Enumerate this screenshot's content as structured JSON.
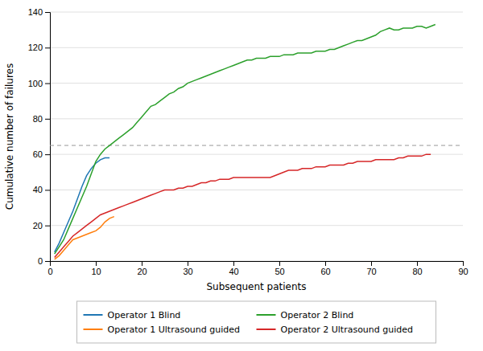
{
  "chart_data": {
    "type": "line",
    "xlabel": "Subsequent patients",
    "ylabel": "Cumulative number of failures",
    "xlim": [
      0,
      90
    ],
    "ylim": [
      0,
      140
    ],
    "xticks": [
      0,
      10,
      20,
      30,
      40,
      50,
      60,
      70,
      80,
      90
    ],
    "yticks": [
      0,
      20,
      40,
      60,
      80,
      100,
      120,
      140
    ],
    "grid": true,
    "legend": "bottom",
    "reference_line": 65,
    "series": [
      {
        "name": "Operator 1 Blind",
        "x": [
          1,
          2,
          3,
          4,
          5,
          6,
          7,
          8,
          9,
          10,
          11,
          12,
          13
        ],
        "values": [
          5,
          10,
          16,
          22,
          28,
          35,
          42,
          48,
          52,
          55,
          57,
          58,
          58
        ]
      },
      {
        "name": "Operator 1 Ultrasound guided",
        "x": [
          1,
          2,
          3,
          4,
          5,
          6,
          7,
          8,
          9,
          10,
          11,
          12,
          13,
          14
        ],
        "values": [
          1,
          3,
          6,
          9,
          12,
          13,
          14,
          15,
          16,
          17,
          19,
          22,
          24,
          25
        ]
      },
      {
        "name": "Operator 2 Blind",
        "x": [
          1,
          2,
          3,
          4,
          5,
          6,
          7,
          8,
          9,
          10,
          11,
          12,
          13,
          14,
          15,
          16,
          17,
          18,
          19,
          20,
          21,
          22,
          23,
          24,
          25,
          26,
          27,
          28,
          29,
          30,
          31,
          32,
          33,
          34,
          35,
          36,
          37,
          38,
          39,
          40,
          41,
          42,
          43,
          44,
          45,
          46,
          47,
          48,
          49,
          50,
          51,
          52,
          53,
          54,
          55,
          56,
          57,
          58,
          59,
          60,
          61,
          62,
          63,
          64,
          65,
          66,
          67,
          68,
          69,
          70,
          71,
          72,
          73,
          74,
          75,
          76,
          77,
          78,
          79,
          80,
          81,
          82,
          83,
          84
        ],
        "values": [
          4,
          8,
          12,
          18,
          24,
          30,
          36,
          42,
          49,
          56,
          60,
          63,
          65,
          67,
          69,
          71,
          73,
          75,
          78,
          81,
          84,
          87,
          88,
          90,
          92,
          94,
          95,
          97,
          98,
          100,
          101,
          102,
          103,
          104,
          105,
          106,
          107,
          108,
          109,
          110,
          111,
          112,
          113,
          113,
          114,
          114,
          114,
          115,
          115,
          115,
          116,
          116,
          116,
          117,
          117,
          117,
          117,
          118,
          118,
          118,
          119,
          119,
          120,
          121,
          122,
          123,
          124,
          124,
          125,
          126,
          127,
          129,
          130,
          131,
          130,
          130,
          131,
          131,
          131,
          132,
          132,
          131,
          132,
          133
        ]
      },
      {
        "name": "Operator 2 Ultrasound guided",
        "x": [
          1,
          2,
          3,
          4,
          5,
          6,
          7,
          8,
          9,
          10,
          11,
          12,
          13,
          14,
          15,
          16,
          17,
          18,
          19,
          20,
          21,
          22,
          23,
          24,
          25,
          26,
          27,
          28,
          29,
          30,
          31,
          32,
          33,
          34,
          35,
          36,
          37,
          38,
          39,
          40,
          41,
          42,
          43,
          44,
          45,
          46,
          47,
          48,
          49,
          50,
          51,
          52,
          53,
          54,
          55,
          56,
          57,
          58,
          59,
          60,
          61,
          62,
          63,
          64,
          65,
          66,
          67,
          68,
          69,
          70,
          71,
          72,
          73,
          74,
          75,
          76,
          77,
          78,
          79,
          80,
          81,
          82,
          83
        ],
        "values": [
          2,
          5,
          8,
          11,
          14,
          16,
          18,
          20,
          22,
          24,
          26,
          27,
          28,
          29,
          30,
          31,
          32,
          33,
          34,
          35,
          36,
          37,
          38,
          39,
          40,
          40,
          40,
          41,
          41,
          42,
          42,
          43,
          44,
          44,
          45,
          45,
          46,
          46,
          46,
          47,
          47,
          47,
          47,
          47,
          47,
          47,
          47,
          47,
          48,
          49,
          50,
          51,
          51,
          51,
          52,
          52,
          52,
          53,
          53,
          53,
          54,
          54,
          54,
          54,
          55,
          55,
          56,
          56,
          56,
          56,
          57,
          57,
          57,
          57,
          57,
          58,
          58,
          59,
          59,
          59,
          59,
          60,
          60
        ]
      }
    ]
  }
}
